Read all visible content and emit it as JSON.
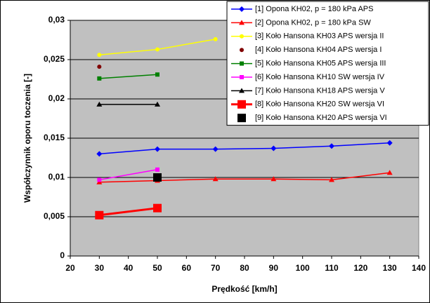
{
  "chart_data": {
    "type": "line",
    "xlabel": "Prędkość [km/h]",
    "ylabel": "Współczynnik oporu toczenia [-]",
    "xlim": [
      20,
      140
    ],
    "xticks": [
      20,
      30,
      40,
      50,
      60,
      70,
      80,
      90,
      100,
      110,
      120,
      130,
      140
    ],
    "ylim": [
      0,
      0.03
    ],
    "yticks": [
      0,
      {
        "value": 0.005,
        "label": "0,005"
      },
      {
        "value": 0.01,
        "label": "0,01"
      },
      {
        "value": 0.015,
        "label": "0,015"
      },
      {
        "value": 0.02,
        "label": "0,02"
      },
      {
        "value": 0.025,
        "label": "0,025"
      },
      {
        "value": 0.03,
        "label": "0,03"
      }
    ],
    "grid": true,
    "legend": "top-right",
    "series": [
      {
        "name": "[1] Opona KH02, p = 180 kPa APS",
        "color": "#0000ff",
        "marker": "diamond",
        "x": [
          30,
          50,
          70,
          90,
          110,
          130
        ],
        "values": [
          0.013,
          0.0136,
          0.0136,
          0.0137,
          0.014,
          0.0144
        ]
      },
      {
        "name": "[2] Opona KH02, p = 180 kPa SW",
        "color": "#ff0000",
        "marker": "triangle",
        "x": [
          30,
          50,
          70,
          90,
          110,
          130
        ],
        "values": [
          0.0094,
          0.0096,
          0.0098,
          0.0098,
          0.0097,
          0.0106
        ]
      },
      {
        "name": "[3] Koło Hansona KH03 APS wersja II",
        "color": "#ffff00",
        "marker": "circle",
        "x": [
          30,
          50,
          70
        ],
        "values": [
          0.0256,
          0.0263,
          0.0276
        ]
      },
      {
        "name": "[4] Koło Hansona KH04 APS wersja I",
        "color": "#800000",
        "marker": "circle",
        "x": [
          30
        ],
        "values": [
          0.0241
        ]
      },
      {
        "name": "[5] Koło Hansona KH05 APS wersja III",
        "color": "#008000",
        "marker": "square",
        "x": [
          30,
          50
        ],
        "values": [
          0.0226,
          0.0231
        ]
      },
      {
        "name": "[6] Koło Hansona KH10 SW wersja IV",
        "color": "#ff00ff",
        "marker": "square",
        "x": [
          30,
          50
        ],
        "values": [
          0.0097,
          0.011
        ]
      },
      {
        "name": "[7] Koło Hansona KH18 APS wersja V",
        "color": "#000000",
        "marker": "triangle",
        "x": [
          30,
          50
        ],
        "values": [
          0.0193,
          0.0193
        ]
      },
      {
        "name": "[8] Koło Hansona KH20 SW wersja VI",
        "color": "#ff0000",
        "marker": "big-square",
        "x": [
          30,
          50
        ],
        "values": [
          0.0052,
          0.0061
        ]
      },
      {
        "name": "[9] Koło Hansona KH20 APS wersja VI",
        "color": "#000000",
        "marker": "big-square",
        "x": [
          50
        ],
        "values": [
          0.01
        ]
      }
    ]
  }
}
